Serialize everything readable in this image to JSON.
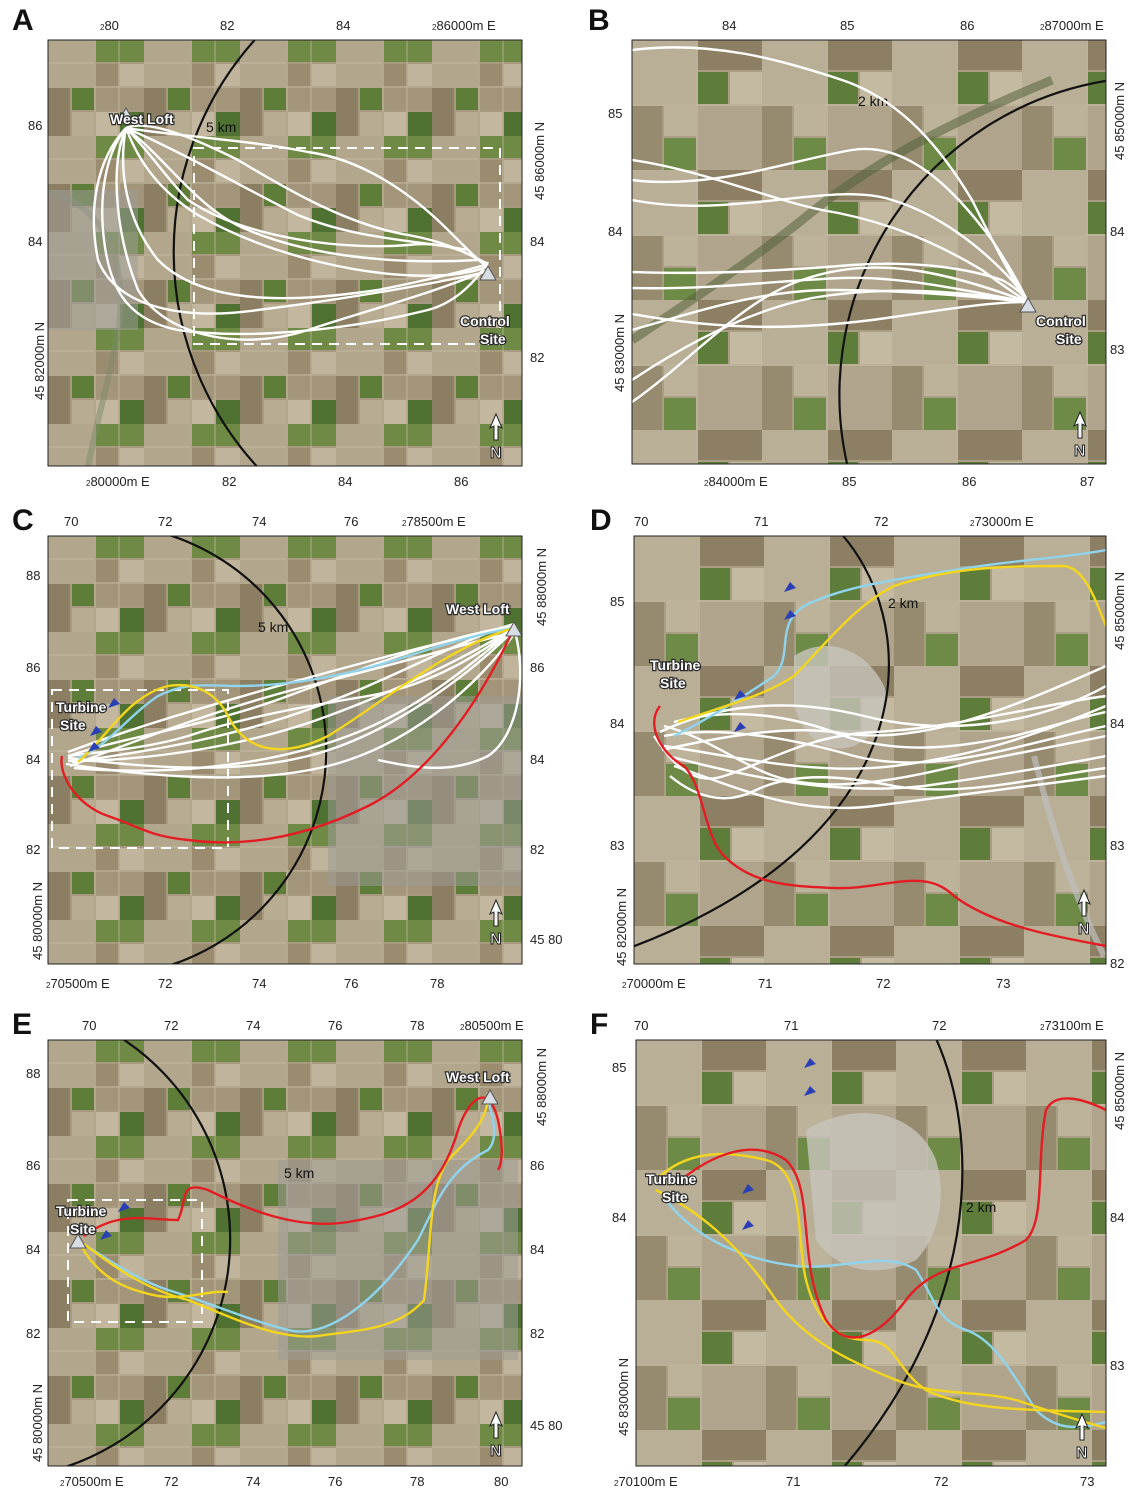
{
  "colors": {
    "track_white": "#ffffff",
    "track_blue": "#8fd3ec",
    "track_yellow": "#f3d51e",
    "track_red": "#e31d23",
    "turbine_marker": "#2a3fb5",
    "radius_circle": "#111111",
    "farmland_base": "#a99a7e",
    "farmland_green": "#5f7f3a",
    "dashed_box": "#ffffff"
  },
  "icons": {
    "north_arrow": "north-arrow-icon",
    "site_marker": "triangle-site-icon",
    "turbine": "turbine-marker-icon"
  },
  "panels": [
    {
      "id": "A",
      "label": "A",
      "radius_label": "5 km",
      "sites": [
        {
          "name": "West Loft",
          "lines": [
            "West Loft"
          ]
        },
        {
          "name": "Control Site",
          "lines": [
            "Control",
            "Site"
          ]
        }
      ],
      "x_top_ticks": [
        {
          "sup": "2",
          "main": "80"
        },
        {
          "sup": "",
          "main": "82"
        },
        {
          "sup": "",
          "main": "84"
        },
        {
          "sup": "2",
          "main": "86000m E"
        }
      ],
      "x_bottom_ticks": [
        {
          "sup": "2",
          "main": "80000m E"
        },
        {
          "sup": "",
          "main": "82"
        },
        {
          "sup": "",
          "main": "84"
        },
        {
          "sup": "",
          "main": "86"
        }
      ],
      "y_left_ticks": [
        "86",
        "84",
        "45 82000m N"
      ],
      "y_right_ticks": [
        "45 86000m N",
        "84",
        "82"
      ],
      "tracks": {
        "white": 10,
        "blue": 0,
        "yellow": 0,
        "red": 0
      }
    },
    {
      "id": "B",
      "label": "B",
      "radius_label": "2 km",
      "sites": [
        {
          "name": "Control Site",
          "lines": [
            "Control",
            "Site"
          ]
        }
      ],
      "x_top_ticks": [
        {
          "sup": "",
          "main": "84"
        },
        {
          "sup": "",
          "main": "85"
        },
        {
          "sup": "",
          "main": "86"
        },
        {
          "sup": "2",
          "main": "87000m E"
        }
      ],
      "x_bottom_ticks": [
        {
          "sup": "2",
          "main": "84000m E"
        },
        {
          "sup": "",
          "main": "85"
        },
        {
          "sup": "",
          "main": "86"
        },
        {
          "sup": "",
          "main": "87"
        }
      ],
      "y_left_ticks": [
        "85",
        "84",
        "45 83000m N"
      ],
      "y_right_ticks": [
        "45 85000m N",
        "84",
        "83"
      ],
      "tracks": {
        "white": 10,
        "blue": 0,
        "yellow": 0,
        "red": 0
      }
    },
    {
      "id": "C",
      "label": "C",
      "radius_label": "5 km",
      "sites": [
        {
          "name": "West Loft",
          "lines": [
            "West Loft"
          ]
        },
        {
          "name": "Turbine Site",
          "lines": [
            "Turbine",
            "Site"
          ]
        }
      ],
      "x_top_ticks": [
        {
          "sup": "",
          "main": "70"
        },
        {
          "sup": "",
          "main": "72"
        },
        {
          "sup": "",
          "main": "74"
        },
        {
          "sup": "",
          "main": "76"
        },
        {
          "sup": "2",
          "main": "78500m E"
        }
      ],
      "x_bottom_ticks": [
        {
          "sup": "2",
          "main": "70500m E"
        },
        {
          "sup": "",
          "main": "72"
        },
        {
          "sup": "",
          "main": "74"
        },
        {
          "sup": "",
          "main": "76"
        },
        {
          "sup": "",
          "main": "78"
        }
      ],
      "y_left_ticks": [
        "88",
        "86",
        "84",
        "82",
        "45 80000m N"
      ],
      "y_right_ticks": [
        "45 88000m N",
        "86",
        "84",
        "82",
        "45 80"
      ],
      "tracks": {
        "white": 10,
        "blue": 1,
        "yellow": 1,
        "red": 1
      }
    },
    {
      "id": "D",
      "label": "D",
      "radius_label": "2 km",
      "sites": [
        {
          "name": "Turbine Site",
          "lines": [
            "Turbine",
            "Site"
          ]
        }
      ],
      "x_top_ticks": [
        {
          "sup": "",
          "main": "70"
        },
        {
          "sup": "",
          "main": "71"
        },
        {
          "sup": "",
          "main": "72"
        },
        {
          "sup": "2",
          "main": "73000m E"
        }
      ],
      "x_bottom_ticks": [
        {
          "sup": "2",
          "main": "70000m E"
        },
        {
          "sup": "",
          "main": "71"
        },
        {
          "sup": "",
          "main": "72"
        },
        {
          "sup": "",
          "main": "73"
        }
      ],
      "y_left_ticks": [
        "85",
        "84",
        "83",
        "45 82000m N"
      ],
      "y_right_ticks": [
        "45 85000m N",
        "84",
        "83",
        "82"
      ],
      "tracks": {
        "white": 10,
        "blue": 1,
        "yellow": 1,
        "red": 1
      }
    },
    {
      "id": "E",
      "label": "E",
      "radius_label": "5 km",
      "sites": [
        {
          "name": "West Loft",
          "lines": [
            "West Loft"
          ]
        },
        {
          "name": "Turbine Site",
          "lines": [
            "Turbine",
            "Site"
          ]
        }
      ],
      "x_top_ticks": [
        {
          "sup": "",
          "main": "70"
        },
        {
          "sup": "",
          "main": "72"
        },
        {
          "sup": "",
          "main": "74"
        },
        {
          "sup": "",
          "main": "76"
        },
        {
          "sup": "",
          "main": "78"
        },
        {
          "sup": "2",
          "main": "80500m E"
        }
      ],
      "x_bottom_ticks": [
        {
          "sup": "2",
          "main": "70500m E"
        },
        {
          "sup": "",
          "main": "72"
        },
        {
          "sup": "",
          "main": "74"
        },
        {
          "sup": "",
          "main": "76"
        },
        {
          "sup": "",
          "main": "78"
        },
        {
          "sup": "",
          "main": "80"
        }
      ],
      "y_left_ticks": [
        "88",
        "86",
        "84",
        "82",
        "45 80000m N"
      ],
      "y_right_ticks": [
        "45 88000m N",
        "86",
        "84",
        "82",
        "45 80"
      ],
      "tracks": {
        "white": 0,
        "blue": 1,
        "yellow": 2,
        "red": 1
      }
    },
    {
      "id": "F",
      "label": "F",
      "radius_label": "2 km",
      "sites": [
        {
          "name": "Turbine Site",
          "lines": [
            "Turbine",
            "Site"
          ]
        }
      ],
      "x_top_ticks": [
        {
          "sup": "",
          "main": "70"
        },
        {
          "sup": "",
          "main": "71"
        },
        {
          "sup": "",
          "main": "72"
        },
        {
          "sup": "2",
          "main": "73100m E"
        }
      ],
      "x_bottom_ticks": [
        {
          "sup": "2",
          "main": "70100m E"
        },
        {
          "sup": "",
          "main": "71"
        },
        {
          "sup": "",
          "main": "72"
        },
        {
          "sup": "",
          "main": "73"
        }
      ],
      "y_left_ticks": [
        "85",
        "84",
        "45 83000m N"
      ],
      "y_right_ticks": [
        "45 85000m N",
        "84",
        "83"
      ],
      "tracks": {
        "white": 0,
        "blue": 1,
        "yellow": 2,
        "red": 1
      }
    }
  ]
}
